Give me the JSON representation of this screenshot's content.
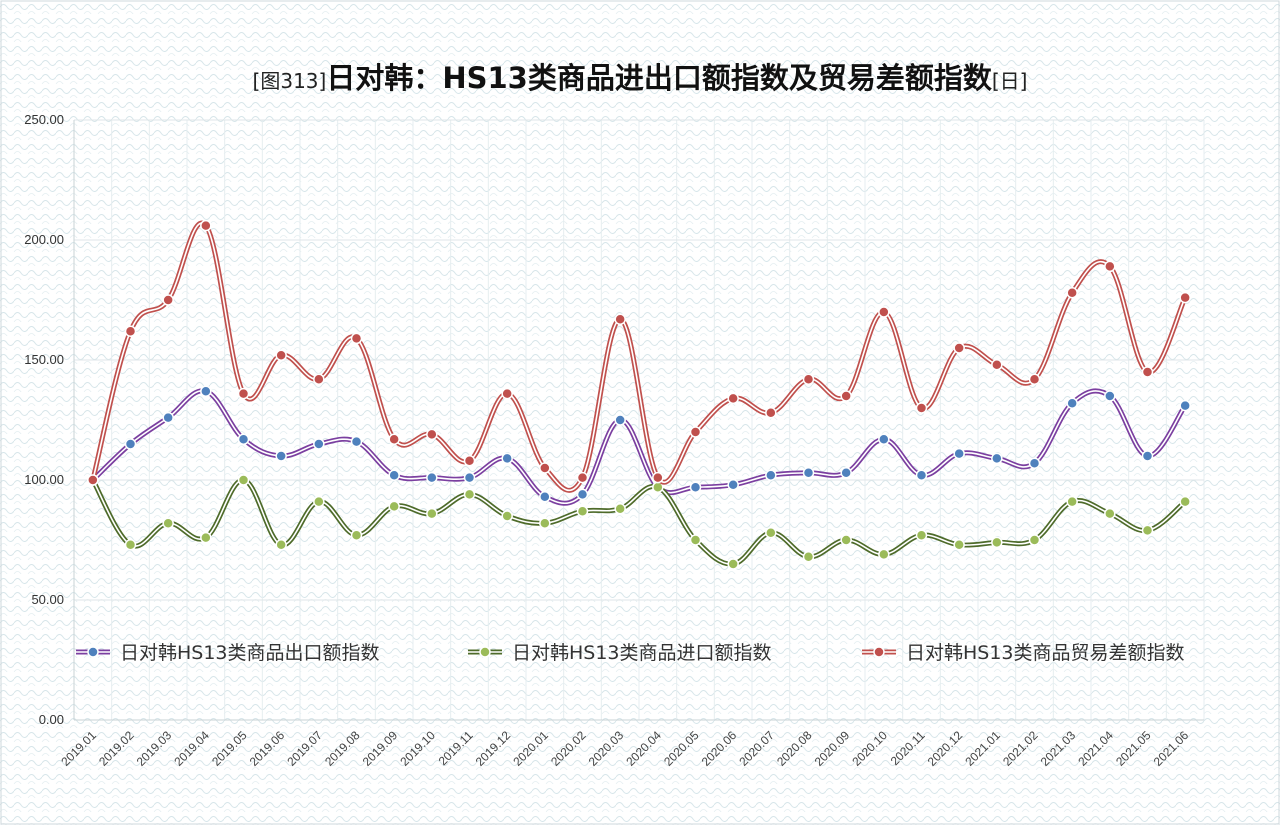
{
  "chart_data": {
    "type": "line",
    "title_prefix": "[图313]",
    "title_main": "日对韩：HS13类商品进出口额指数及贸易差额指数",
    "title_suffix": "[日]",
    "xlabel": "",
    "ylabel": "",
    "ylim": [
      0,
      250
    ],
    "yticks": [
      "0.00",
      "50.00",
      "100.00",
      "150.00",
      "200.00",
      "250.00"
    ],
    "grid": true,
    "legend_position": "bottom-inside",
    "categories": [
      "2019.01",
      "2019.02",
      "2019.03",
      "2019.04",
      "2019.05",
      "2019.06",
      "2019.07",
      "2019.08",
      "2019.09",
      "2019.10",
      "2019.11",
      "2019.12",
      "2020.01",
      "2020.02",
      "2020.03",
      "2020.04",
      "2020.05",
      "2020.06",
      "2020.07",
      "2020.08",
      "2020.09",
      "2020.10",
      "2020.11",
      "2020.12",
      "2021.01",
      "2021.02",
      "2021.03",
      "2021.04",
      "2021.05",
      "2021.06"
    ],
    "series": [
      {
        "name": "日对韩HS13类商品出口额指数",
        "color": "#7b3fa0",
        "marker_color": "#4f81bd",
        "values": [
          100,
          115,
          126,
          137,
          117,
          110,
          115,
          116,
          102,
          101,
          101,
          109,
          93,
          94,
          125,
          97,
          97,
          98,
          102,
          103,
          103,
          117,
          102,
          111,
          109,
          107,
          132,
          135,
          110,
          131
        ]
      },
      {
        "name": "日对韩HS13类商品进口额指数",
        "color": "#4e6b2a",
        "marker_color": "#9bbb59",
        "values": [
          100,
          73,
          82,
          76,
          100,
          73,
          91,
          77,
          89,
          86,
          94,
          85,
          82,
          87,
          88,
          97,
          75,
          65,
          78,
          68,
          75,
          69,
          77,
          73,
          74,
          75,
          91,
          86,
          79,
          91
        ]
      },
      {
        "name": "日对韩HS13类商品贸易差额指数",
        "color": "#c0504d",
        "marker_color": "#c0504d",
        "values": [
          100,
          162,
          175,
          206,
          136,
          152,
          142,
          159,
          117,
          119,
          108,
          136,
          105,
          101,
          167,
          101,
          120,
          134,
          128,
          142,
          135,
          170,
          130,
          155,
          148,
          142,
          178,
          189,
          145,
          176
        ]
      }
    ]
  }
}
